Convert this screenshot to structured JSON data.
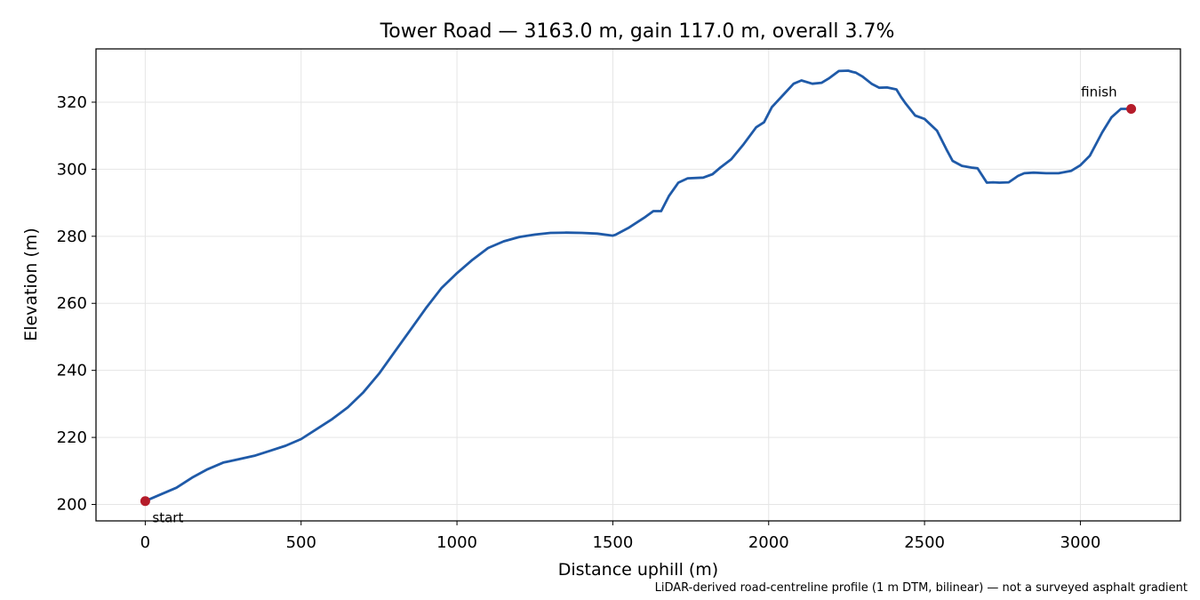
{
  "chart_data": {
    "type": "line",
    "title": "Tower Road — 3163.0 m, gain 117.0 m, overall 3.7%",
    "xlabel": "Distance uphill (m)",
    "ylabel": "Elevation (m)",
    "footnote": "LiDAR-derived road-centreline profile (1 m DTM, bilinear) — not a surveyed asphalt gradient",
    "xlim": [
      -158,
      3321
    ],
    "ylim": [
      195.1,
      335.9
    ],
    "x_ticks": [
      0,
      500,
      1000,
      1500,
      2000,
      2500,
      3000
    ],
    "y_ticks": [
      200,
      220,
      240,
      260,
      280,
      300,
      320
    ],
    "grid": true,
    "colors": {
      "line": "#1f5aa8",
      "marker": "#b51c2a",
      "grid": "#e5e5e5",
      "footnote": "#777777"
    },
    "series": [
      {
        "x": [
          0,
          50,
          100,
          150,
          200,
          250,
          300,
          350,
          400,
          450,
          500,
          550,
          600,
          650,
          700,
          750,
          800,
          850,
          900,
          950,
          1000,
          1050,
          1100,
          1150,
          1200,
          1250,
          1300,
          1350,
          1400,
          1450,
          1500,
          1510,
          1550,
          1600,
          1630,
          1655,
          1680,
          1710,
          1740,
          1790,
          1820,
          1845,
          1880,
          1920,
          1960,
          1985,
          2010,
          2050,
          2080,
          2105,
          2140,
          2170,
          2195,
          2225,
          2255,
          2270,
          2280,
          2300,
          2330,
          2355,
          2380,
          2410,
          2425,
          2440,
          2470,
          2500,
          2540,
          2570,
          2590,
          2620,
          2650,
          2670,
          2700,
          2720,
          2740,
          2770,
          2800,
          2820,
          2850,
          2890,
          2930,
          2970,
          3000,
          3030,
          3050,
          3070,
          3100,
          3130,
          3163
        ],
        "y": [
          201.0,
          203.0,
          205.0,
          208.0,
          210.5,
          212.5,
          213.5,
          214.5,
          216.0,
          217.5,
          219.5,
          222.5,
          225.5,
          229.0,
          233.5,
          239.0,
          245.5,
          252.0,
          258.5,
          264.5,
          269.0,
          273.0,
          276.5,
          278.5,
          279.8,
          280.5,
          281.0,
          281.1,
          281.0,
          280.8,
          280.2,
          280.5,
          282.5,
          285.5,
          287.5,
          287.5,
          292.0,
          296.0,
          297.3,
          297.5,
          298.5,
          300.5,
          303.0,
          307.5,
          312.5,
          314.0,
          318.5,
          322.5,
          325.5,
          326.5,
          325.5,
          325.8,
          327.2,
          329.3,
          329.4,
          329.0,
          328.8,
          327.7,
          325.5,
          324.3,
          324.4,
          323.8,
          321.5,
          319.5,
          316.0,
          315.0,
          311.5,
          306.0,
          302.5,
          301.0,
          300.5,
          300.3,
          296.0,
          296.1,
          296.0,
          296.1,
          298.0,
          298.8,
          299.0,
          298.8,
          298.8,
          299.5,
          301.2,
          304.0,
          307.5,
          311.0,
          315.5,
          318.0,
          318.0
        ]
      }
    ],
    "markers": [
      {
        "label": "start",
        "x": 0,
        "y": 201.0
      },
      {
        "label": "finish",
        "x": 3163,
        "y": 318.0
      }
    ]
  }
}
